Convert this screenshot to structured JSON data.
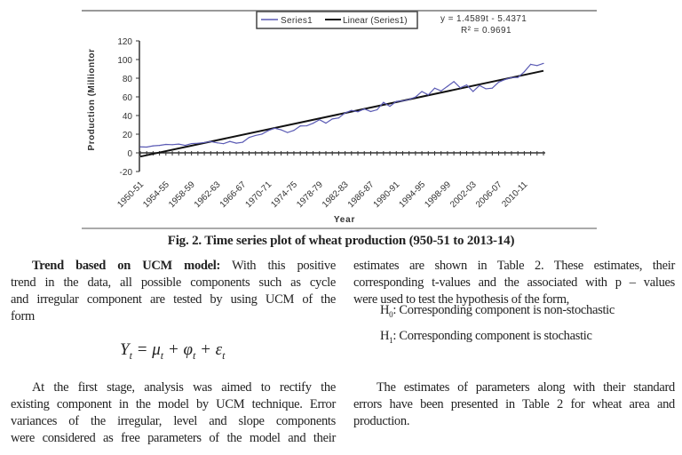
{
  "chart_data": {
    "type": "line",
    "title": "",
    "xlabel": "Year",
    "ylabel": "Production (Milliontor",
    "ylim": [
      -20,
      120
    ],
    "yticks": [
      "-20",
      "0",
      "20",
      "40",
      "60",
      "80",
      "100",
      "120"
    ],
    "xtick_labels": [
      "1950-51",
      "1954-55",
      "1958-59",
      "1962-63",
      "1966-67",
      "1970-71",
      "1974-75",
      "1978-79",
      "1982-83",
      "1986-87",
      "1990-91",
      "1994-95",
      "1998-99",
      "2002-03",
      "2006-07",
      "2010-11"
    ],
    "legend": {
      "position": "top",
      "entries": [
        "Series1",
        "Linear (Series1)"
      ]
    },
    "trend_equation": "y = 1.4589t - 5.4371",
    "r_squared": "R² = 0.9691",
    "trend": {
      "slope": 1.4589,
      "intercept": -5.4371
    },
    "colors": {
      "series": "#5a5ab4",
      "trend": "#111111"
    },
    "grid": false,
    "series": [
      {
        "name": "Series1",
        "values": [
          6.46,
          6.18,
          7.5,
          8.0,
          9.04,
          8.76,
          9.4,
          7.99,
          9.96,
          10.32,
          11.0,
          12.07,
          10.78,
          9.85,
          12.26,
          10.4,
          11.39,
          16.54,
          18.65,
          20.09,
          23.83,
          26.41,
          24.74,
          21.78,
          24.1,
          28.84,
          29.01,
          31.75,
          35.51,
          31.83,
          36.31,
          37.45,
          42.79,
          45.48,
          44.07,
          47.05,
          44.32,
          46.17,
          54.11,
          49.85,
          55.14,
          55.69,
          57.21,
          59.84,
          65.77,
          62.1,
          69.35,
          66.35,
          71.29,
          76.37,
          69.68,
          72.77,
          65.76,
          72.15,
          68.64,
          69.35,
          75.81,
          78.57,
          80.68,
          80.8,
          86.87,
          94.88,
          93.51,
          95.85
        ]
      }
    ]
  },
  "caption": "Fig. 2. Time series plot of wheat production (950-51 to 2013-14)",
  "left_column": {
    "heading": "Trend based on UCM model:",
    "p1_lines": [
      " With this positive",
      "trend in the data, all possible components such as cycle",
      "and irregular component are tested by using UCM of the",
      "form"
    ],
    "formula": "Yt = μt + φt + εt",
    "p2_lines": [
      "At the first stage, analysis was aimed to rectify the",
      "existing component in the model by UCM technique. Error",
      "variances of the irregular, level and slope components",
      "were considered as free parameters of the model and their"
    ]
  },
  "right_column": {
    "p1_lines": [
      "estimates are shown in Table 2. These estimates, their",
      "corresponding t-values and the associated with p – values",
      "were used to test the hypothesis of the form,"
    ],
    "h0": "H0: Corresponding component is non-stochastic",
    "h1": "H1: Corresponding component is stochastic",
    "p2_lines": [
      "The estimates of parameters along with their standard",
      "errors have been presented in Table 2 for wheat area and",
      "production."
    ]
  }
}
